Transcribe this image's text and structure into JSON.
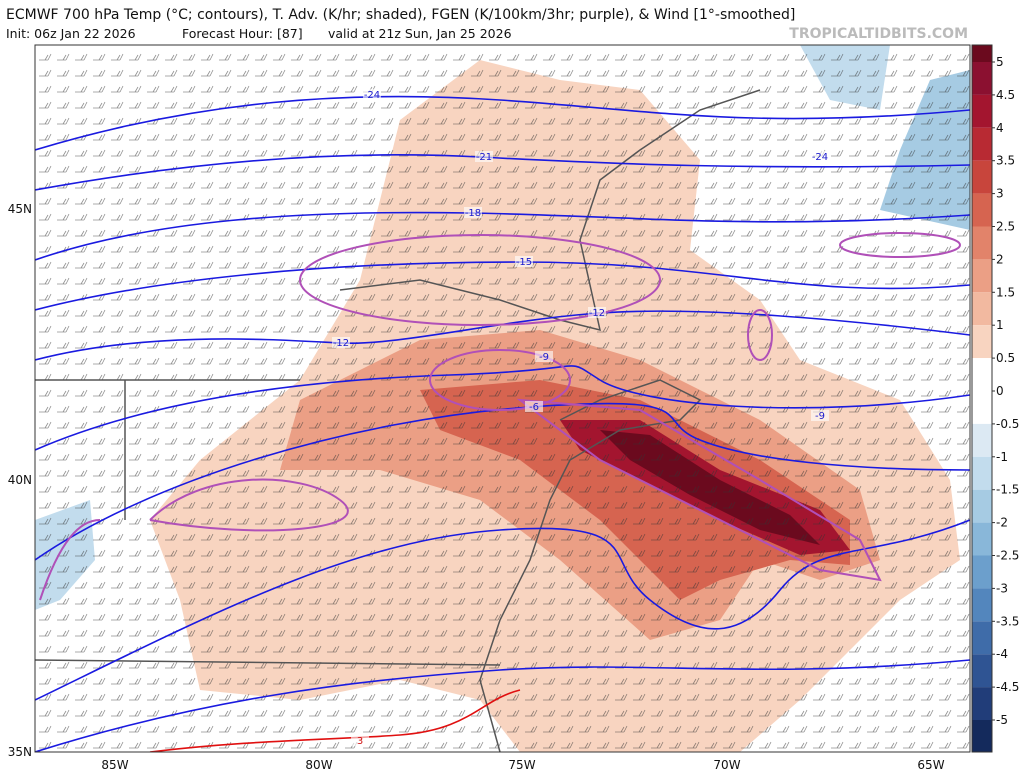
{
  "header": {
    "title": "ECMWF 700 hPa Temp (°C; contours), T. Adv. (K/hr; shaded), FGEN (K/100km/3hr; purple), & Wind [1°-smoothed]",
    "init": "Init: 06z Jan 22 2026",
    "forecast_hour": "Forecast Hour: [87]",
    "valid": "valid at 21z Sun, Jan 25 2026",
    "watermark": "TROPICALTIDBITS.COM"
  },
  "map": {
    "lat_labels": [
      "45N",
      "40N",
      "35N"
    ],
    "lon_labels": [
      "85W",
      "80W",
      "75W",
      "70W",
      "65W"
    ],
    "contour_labels": [
      "-24",
      "-21",
      "-18",
      "-15",
      "-12",
      "-12",
      "-9",
      "-9",
      "-6",
      "-24",
      "3"
    ]
  },
  "colorbar": {
    "ticks": [
      5,
      4.5,
      4,
      3.5,
      3,
      2.5,
      2,
      1.5,
      1,
      0.5,
      0,
      -0.5,
      -1,
      -1.5,
      -2,
      -2.5,
      -3,
      -3.5,
      -4,
      -4.5,
      -5
    ],
    "colors": [
      "#6b0a1e",
      "#8b1030",
      "#a3152f",
      "#b82a33",
      "#c8453c",
      "#d66450",
      "#e2836a",
      "#eb9f85",
      "#f2b9a0",
      "#f8d4c0",
      "#ffffff",
      "#ffffff",
      "#dce9f3",
      "#c2dced",
      "#a6cbe3",
      "#89b7d9",
      "#6c9fcc",
      "#5386bd",
      "#3f6ca9",
      "#2f5493",
      "#213d79",
      "#142a5c"
    ]
  }
}
